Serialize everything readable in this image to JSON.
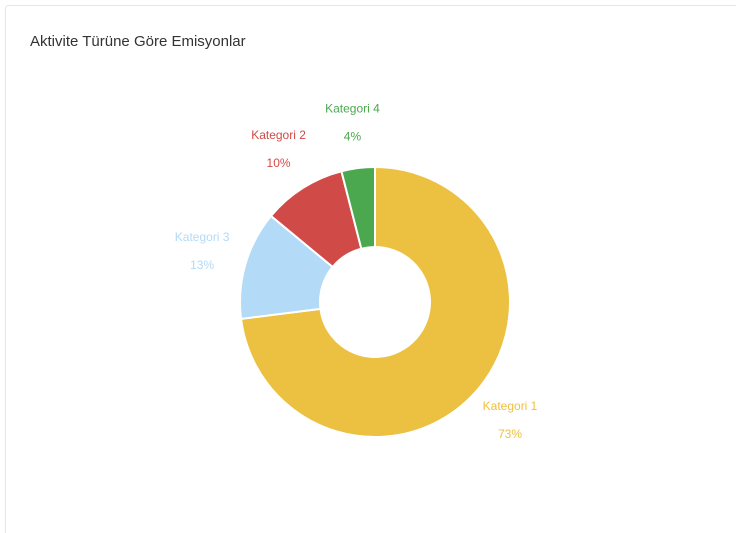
{
  "chart_data": {
    "type": "donut",
    "title": "Aktivite Türüne Göre Emisyonlar",
    "categories": [
      "Kategori 1",
      "Kategori 3",
      "Kategori 2",
      "Kategori 4"
    ],
    "values": [
      73,
      13,
      10,
      4
    ],
    "value_labels": [
      "73%",
      "13%",
      "10%",
      "4%"
    ],
    "colors": [
      "#ecc040",
      "#b3daf7",
      "#d04a48",
      "#4ca84f"
    ]
  }
}
